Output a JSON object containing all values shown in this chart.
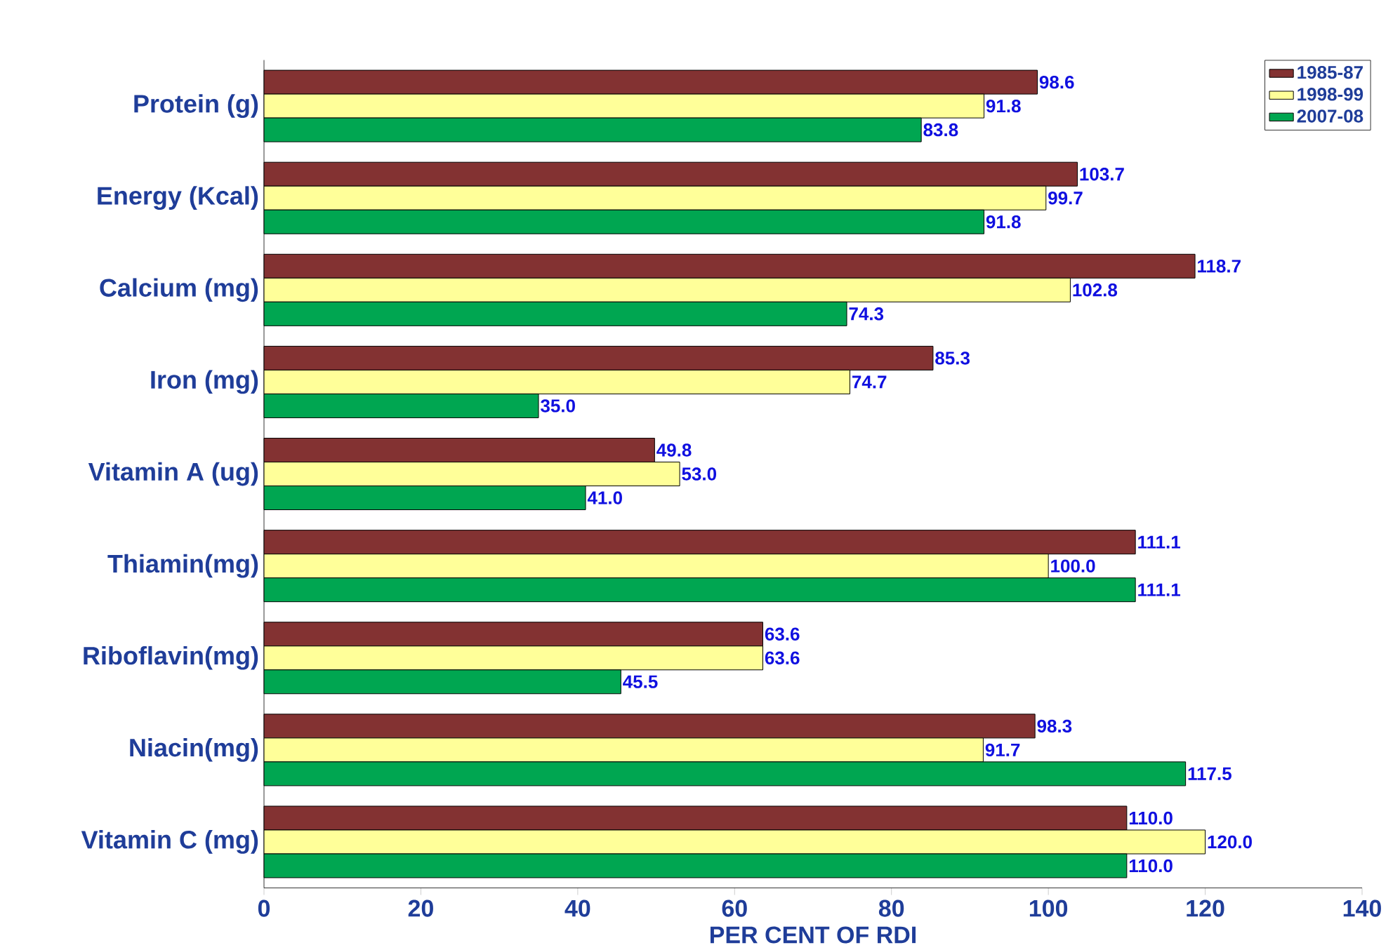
{
  "chart_data": {
    "type": "bar",
    "orientation": "horizontal",
    "xlabel": "PER CENT OF RDI",
    "categories": [
      "Protein (g)",
      "Energy (Kcal)",
      "Calcium (mg)",
      "Iron (mg)",
      "Vitamin A (ug)",
      "Thiamin(mg)",
      "Riboflavin(mg)",
      "Niacin(mg)",
      "Vitamin C (mg)"
    ],
    "series": [
      {
        "name": "1985-87",
        "color": "#833232",
        "values": [
          98.6,
          103.7,
          118.7,
          85.3,
          49.8,
          111.1,
          63.6,
          98.3,
          110.0
        ],
        "value_labels": [
          "98.6",
          "103.7",
          "118.7",
          "85.3",
          "49.8",
          "111.1",
          "63.6",
          "98.3",
          "110.0"
        ]
      },
      {
        "name": "1998-99",
        "color": "#ffff99",
        "values": [
          91.8,
          99.7,
          102.8,
          74.7,
          53.0,
          100.0,
          63.6,
          91.7,
          120.0
        ],
        "value_labels": [
          "91.8",
          "99.7",
          "102.8",
          "74.7",
          "53.0",
          "100.0",
          "63.6",
          "91.7",
          "120.0"
        ]
      },
      {
        "name": "2007-08",
        "color": "#00a651",
        "values": [
          83.8,
          91.8,
          74.3,
          35.0,
          41.0,
          111.1,
          45.5,
          117.5,
          110.0
        ],
        "value_labels": [
          "83.8",
          "91.8",
          "74.3",
          "35.0",
          "41.0",
          "111.1",
          "45.5",
          "117.5",
          "110.0"
        ]
      }
    ],
    "xlim": [
      0,
      140
    ],
    "xticks": [
      0,
      20,
      40,
      60,
      80,
      100,
      120,
      140
    ],
    "legend": "top right",
    "grid": false
  }
}
